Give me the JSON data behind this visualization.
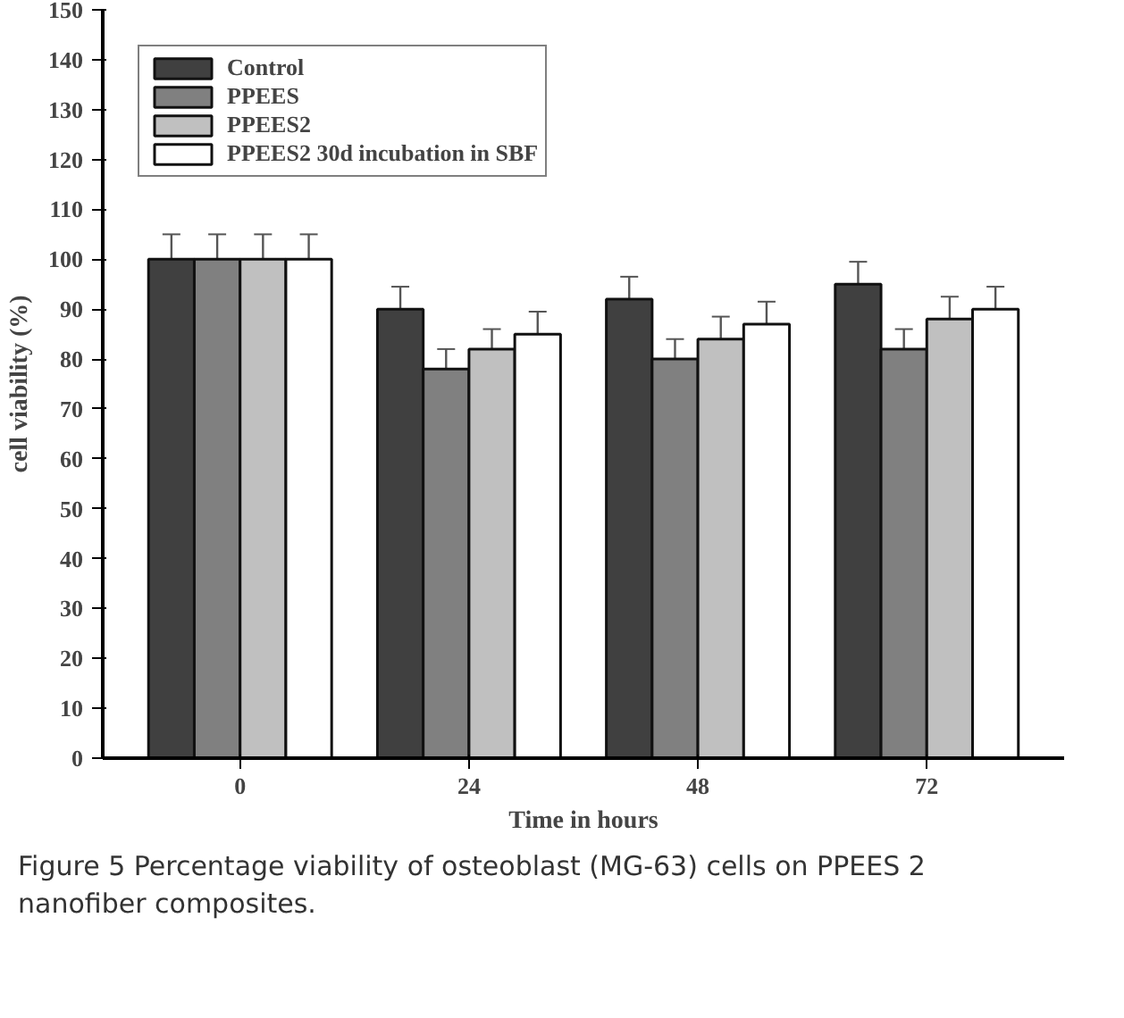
{
  "chart_data": {
    "type": "bar",
    "xlabel": "Time in hours",
    "ylabel": "cell viability (%)",
    "categories": [
      "0",
      "24",
      "48",
      "72"
    ],
    "series": [
      {
        "name": "Control",
        "color": "#404040",
        "values": [
          100,
          90,
          92,
          95
        ],
        "errors": [
          5,
          4.5,
          4.5,
          4.5
        ]
      },
      {
        "name": "PPEES",
        "color": "#808080",
        "values": [
          100,
          78,
          80,
          82
        ],
        "errors": [
          5,
          4,
          4,
          4
        ]
      },
      {
        "name": "PPEES2",
        "color": "#c0c0c0",
        "values": [
          100,
          82,
          84,
          88
        ],
        "errors": [
          5,
          4,
          4.5,
          4.5
        ]
      },
      {
        "name": "PPEES2 30d incubation in SBF",
        "color": "#ffffff",
        "values": [
          100,
          85,
          87,
          90
        ],
        "errors": [
          5,
          4.5,
          4.5,
          4.5
        ]
      }
    ],
    "ylim": [
      0,
      150
    ],
    "yticks": [
      0,
      10,
      20,
      30,
      40,
      50,
      60,
      70,
      80,
      90,
      100,
      110,
      120,
      130,
      140,
      150
    ],
    "grid": false,
    "legend": "top left",
    "annotations": [
      "Figure 5 Percentage viability of osteoblast (MG-63) cells on PPEES 2 nanofiber composites."
    ]
  }
}
